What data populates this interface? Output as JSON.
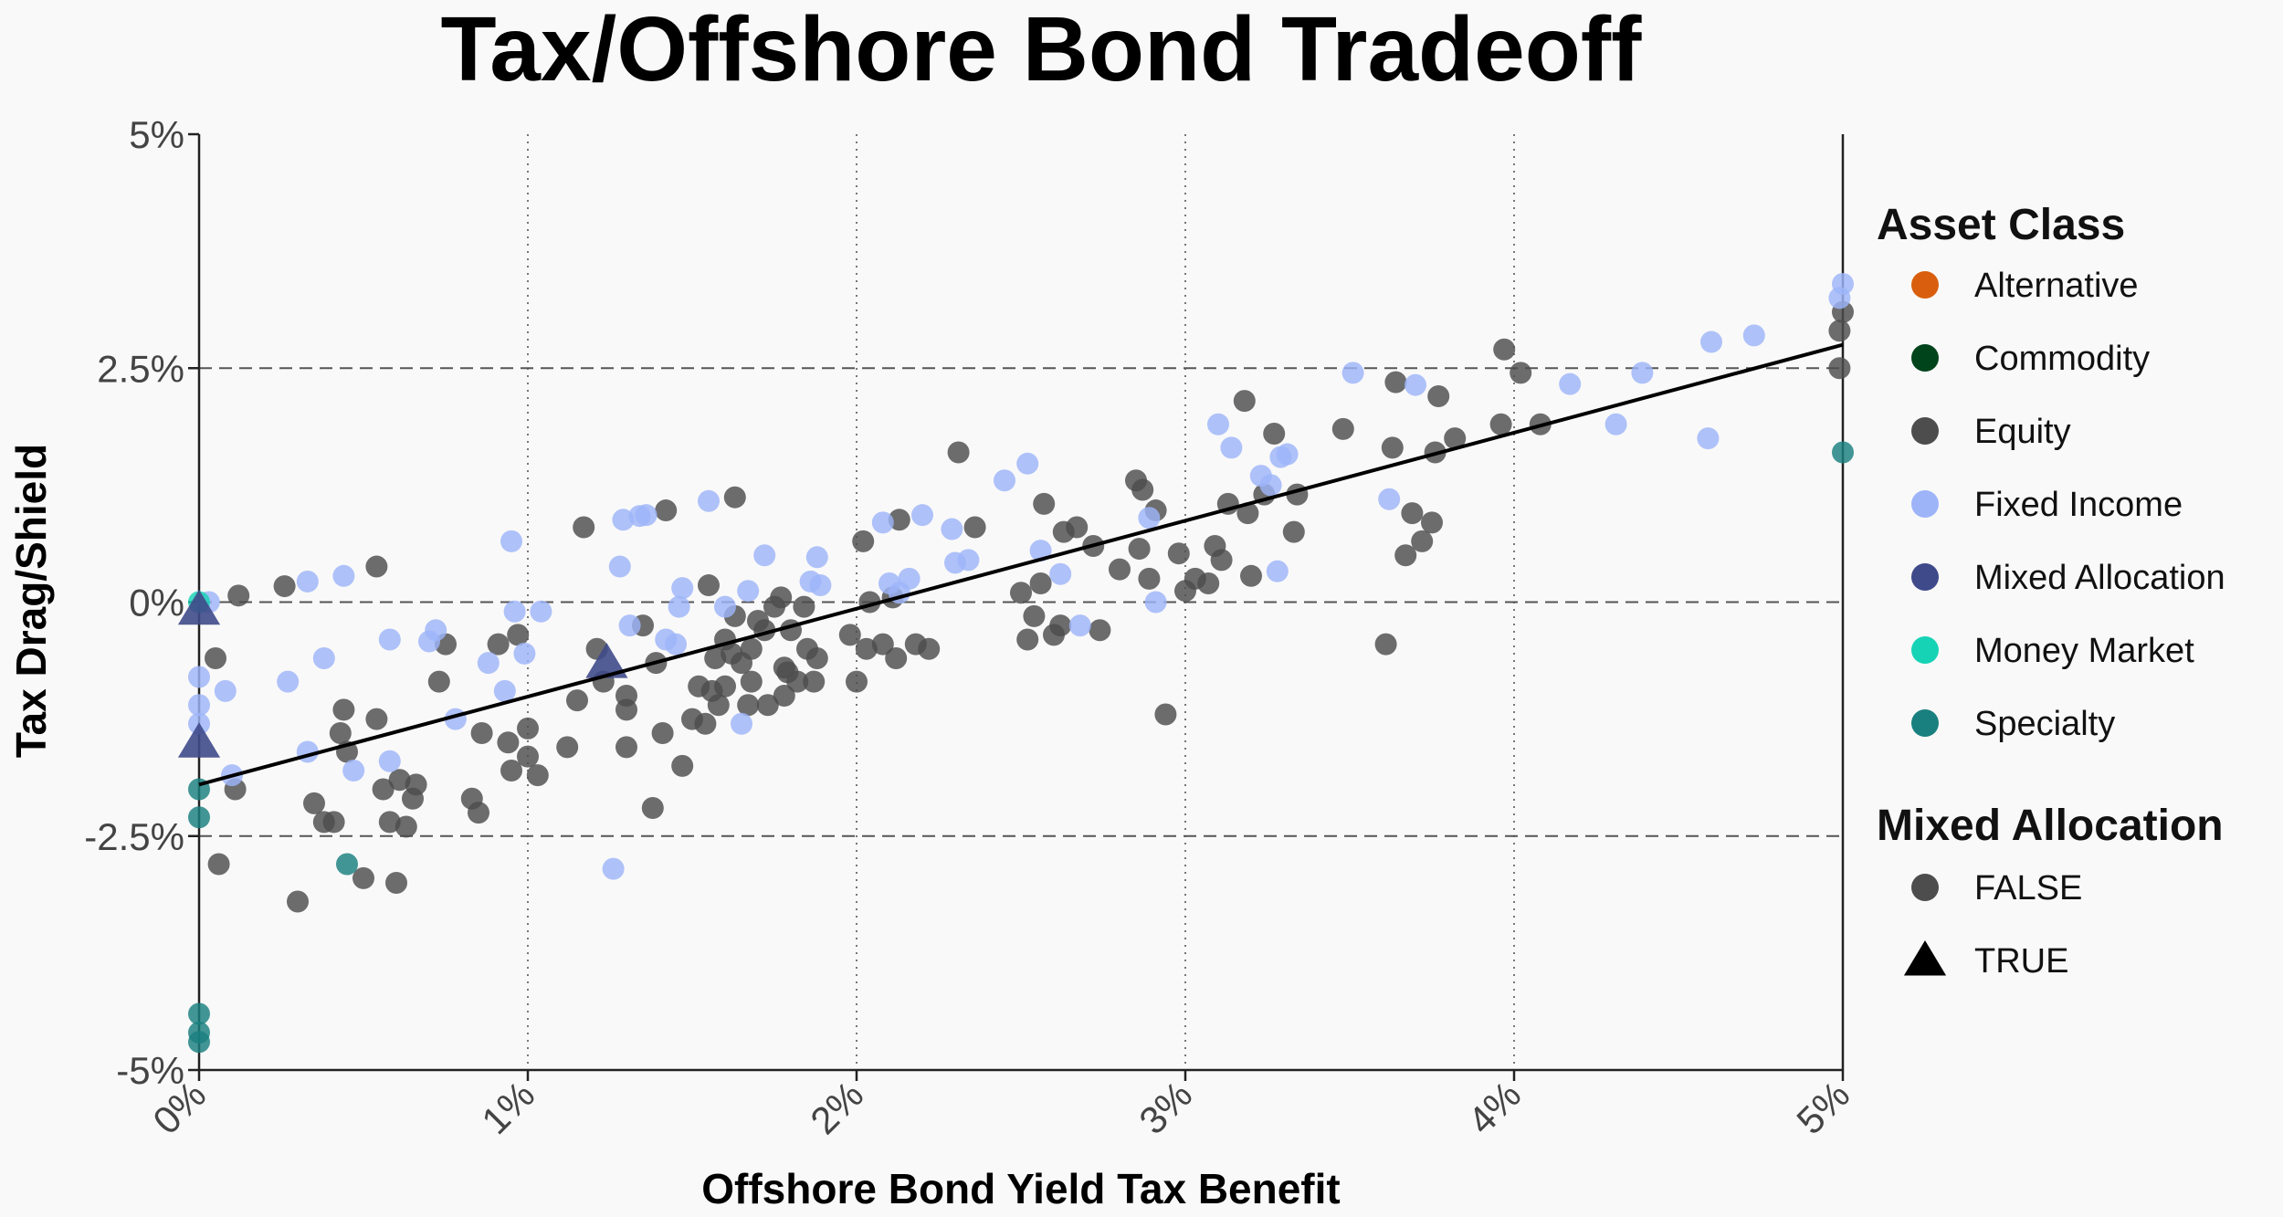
{
  "chart_data": {
    "type": "scatter",
    "title": "Tax/Offshore Bond Tradeoff",
    "xlabel": "Offshore Bond Yield Tax Benefit",
    "ylabel": "Tax Drag/Shield",
    "xlim": [
      0,
      5
    ],
    "ylim": [
      -5,
      5
    ],
    "x_ticks": [
      0,
      1,
      2,
      3,
      4,
      5
    ],
    "x_tick_labels": [
      "0%",
      "1%",
      "2%",
      "3%",
      "4%",
      "5%"
    ],
    "y_ticks": [
      -5,
      -2.5,
      0,
      2.5,
      5
    ],
    "y_tick_labels": [
      "-5%",
      "-2.5%",
      "0%",
      "2.5%",
      "5%"
    ],
    "grid": {
      "vertical": "dotted",
      "horizontal_dashed": [
        -2.5,
        0,
        2.5
      ]
    },
    "trend_line": {
      "x": [
        0,
        5
      ],
      "y": [
        -1.95,
        2.75
      ]
    },
    "legend": {
      "placement": "right",
      "color_title": "Asset Class",
      "shape_title": "Mixed Allocation",
      "classes": [
        {
          "name": "Alternative",
          "color": "#d95f0e"
        },
        {
          "name": "Commodity",
          "color": "#00441b"
        },
        {
          "name": "Equity",
          "color": "#4d4d4d"
        },
        {
          "name": "Fixed Income",
          "color": "#9db4f9"
        },
        {
          "name": "Mixed Allocation",
          "color": "#3f4a8a"
        },
        {
          "name": "Money Market",
          "color": "#17d3b6"
        },
        {
          "name": "Specialty",
          "color": "#1a7f7f"
        }
      ],
      "shapes": [
        {
          "name": "FALSE",
          "shape": "circle"
        },
        {
          "name": "TRUE",
          "shape": "triangle"
        }
      ]
    },
    "series": [
      {
        "class": "Equity",
        "mixed": false,
        "points": [
          [
            0.12,
            0.07
          ],
          [
            0.26,
            0.17
          ],
          [
            0.54,
            0.38
          ],
          [
            0.05,
            -0.6
          ],
          [
            0.06,
            -2.8
          ],
          [
            0.11,
            -2.0
          ],
          [
            0.3,
            -3.2
          ],
          [
            0.35,
            -2.15
          ],
          [
            0.38,
            -2.35
          ],
          [
            0.41,
            -2.35
          ],
          [
            0.43,
            -1.4
          ],
          [
            0.44,
            -1.15
          ],
          [
            0.45,
            -1.6
          ],
          [
            0.5,
            -2.95
          ],
          [
            0.54,
            -1.25
          ],
          [
            0.56,
            -2.0
          ],
          [
            0.58,
            -2.35
          ],
          [
            0.6,
            -3.0
          ],
          [
            0.61,
            -1.9
          ],
          [
            0.63,
            -2.4
          ],
          [
            0.65,
            -2.1
          ],
          [
            0.66,
            -1.95
          ],
          [
            0.73,
            -0.85
          ],
          [
            0.75,
            -0.45
          ],
          [
            0.83,
            -2.1
          ],
          [
            0.85,
            -2.25
          ],
          [
            0.86,
            -1.4
          ],
          [
            0.91,
            -0.45
          ],
          [
            0.94,
            -1.5
          ],
          [
            0.95,
            -1.8
          ],
          [
            0.97,
            -0.35
          ],
          [
            1.0,
            -1.35
          ],
          [
            1.0,
            -1.65
          ],
          [
            1.03,
            -1.85
          ],
          [
            1.12,
            -1.55
          ],
          [
            1.15,
            -1.05
          ],
          [
            1.17,
            0.8
          ],
          [
            1.21,
            -0.5
          ],
          [
            1.23,
            -0.85
          ],
          [
            1.3,
            -1.0
          ],
          [
            1.3,
            -1.15
          ],
          [
            1.3,
            -1.55
          ],
          [
            1.35,
            -0.25
          ],
          [
            1.38,
            -2.2
          ],
          [
            1.39,
            -0.65
          ],
          [
            1.41,
            -1.4
          ],
          [
            1.42,
            0.98
          ],
          [
            1.47,
            -1.75
          ],
          [
            1.5,
            -1.25
          ],
          [
            1.52,
            -0.9
          ],
          [
            1.54,
            -1.3
          ],
          [
            1.55,
            0.18
          ],
          [
            1.56,
            -0.95
          ],
          [
            1.57,
            -0.6
          ],
          [
            1.58,
            -1.1
          ],
          [
            1.6,
            -0.9
          ],
          [
            1.6,
            -0.4
          ],
          [
            1.62,
            -0.55
          ],
          [
            1.63,
            -0.15
          ],
          [
            1.63,
            1.12
          ],
          [
            1.65,
            -0.65
          ],
          [
            1.67,
            -1.1
          ],
          [
            1.68,
            -0.5
          ],
          [
            1.68,
            -0.85
          ],
          [
            1.7,
            -0.2
          ],
          [
            1.72,
            -0.3
          ],
          [
            1.73,
            -1.1
          ],
          [
            1.75,
            -0.05
          ],
          [
            1.77,
            0.05
          ],
          [
            1.78,
            -0.7
          ],
          [
            1.78,
            -1.0
          ],
          [
            1.79,
            -0.75
          ],
          [
            1.8,
            -0.3
          ],
          [
            1.82,
            -0.85
          ],
          [
            1.84,
            -0.05
          ],
          [
            1.85,
            -0.5
          ],
          [
            1.87,
            -0.85
          ],
          [
            1.88,
            -0.6
          ],
          [
            1.98,
            -0.35
          ],
          [
            2.0,
            -0.85
          ],
          [
            2.02,
            0.65
          ],
          [
            2.03,
            -0.5
          ],
          [
            2.04,
            0.0
          ],
          [
            2.08,
            -0.45
          ],
          [
            2.11,
            0.05
          ],
          [
            2.12,
            -0.6
          ],
          [
            2.13,
            0.88
          ],
          [
            2.18,
            -0.45
          ],
          [
            2.22,
            -0.5
          ],
          [
            2.31,
            1.6
          ],
          [
            2.36,
            0.8
          ],
          [
            2.5,
            0.1
          ],
          [
            2.52,
            -0.4
          ],
          [
            2.54,
            -0.15
          ],
          [
            2.56,
            0.2
          ],
          [
            2.57,
            1.05
          ],
          [
            2.6,
            -0.35
          ],
          [
            2.62,
            -0.25
          ],
          [
            2.63,
            0.75
          ],
          [
            2.67,
            0.8
          ],
          [
            2.72,
            0.6
          ],
          [
            2.74,
            -0.3
          ],
          [
            2.8,
            0.35
          ],
          [
            2.85,
            1.3
          ],
          [
            2.86,
            0.57
          ],
          [
            2.87,
            1.2
          ],
          [
            2.89,
            0.25
          ],
          [
            2.91,
            0.98
          ],
          [
            2.94,
            -1.2
          ],
          [
            2.98,
            0.52
          ],
          [
            3.0,
            0.12
          ],
          [
            3.03,
            0.25
          ],
          [
            3.07,
            0.2
          ],
          [
            3.09,
            0.6
          ],
          [
            3.11,
            0.45
          ],
          [
            3.13,
            1.05
          ],
          [
            3.18,
            2.15
          ],
          [
            3.19,
            0.95
          ],
          [
            3.2,
            0.28
          ],
          [
            3.24,
            1.15
          ],
          [
            3.27,
            1.8
          ],
          [
            3.33,
            0.75
          ],
          [
            3.34,
            1.15
          ],
          [
            3.48,
            1.85
          ],
          [
            3.61,
            -0.45
          ],
          [
            3.63,
            1.65
          ],
          [
            3.64,
            2.35
          ],
          [
            3.67,
            0.5
          ],
          [
            3.69,
            0.95
          ],
          [
            3.72,
            0.65
          ],
          [
            3.75,
            0.85
          ],
          [
            3.76,
            1.6
          ],
          [
            3.77,
            2.2
          ],
          [
            3.82,
            1.75
          ],
          [
            3.96,
            1.9
          ],
          [
            3.97,
            2.7
          ],
          [
            4.02,
            2.45
          ],
          [
            4.08,
            1.9
          ],
          [
            5.0,
            3.1
          ],
          [
            4.99,
            2.9
          ],
          [
            4.99,
            2.5
          ]
        ]
      },
      {
        "class": "Fixed Income",
        "mixed": false,
        "points": [
          [
            0.03,
            0.0
          ],
          [
            0.08,
            -0.95
          ],
          [
            0.1,
            -1.85
          ],
          [
            0.27,
            -0.85
          ],
          [
            0.33,
            -1.6
          ],
          [
            0.33,
            0.22
          ],
          [
            0.38,
            -0.6
          ],
          [
            0.44,
            0.28
          ],
          [
            0.47,
            -1.8
          ],
          [
            0.58,
            -0.4
          ],
          [
            0.58,
            -1.7
          ],
          [
            0.7,
            -0.42
          ],
          [
            0.72,
            -0.3
          ],
          [
            0.78,
            -1.25
          ],
          [
            0.88,
            -0.65
          ],
          [
            0.93,
            -0.95
          ],
          [
            0.95,
            0.65
          ],
          [
            0.96,
            -0.1
          ],
          [
            0.99,
            -0.55
          ],
          [
            1.04,
            -0.1
          ],
          [
            1.26,
            -2.85
          ],
          [
            1.28,
            0.38
          ],
          [
            1.29,
            0.88
          ],
          [
            1.31,
            -0.25
          ],
          [
            1.34,
            0.92
          ],
          [
            1.36,
            0.93
          ],
          [
            1.42,
            -0.4
          ],
          [
            1.45,
            -0.45
          ],
          [
            1.46,
            -0.05
          ],
          [
            1.47,
            0.15
          ],
          [
            1.55,
            1.08
          ],
          [
            1.6,
            -0.05
          ],
          [
            1.65,
            -1.3
          ],
          [
            1.67,
            0.12
          ],
          [
            1.72,
            0.5
          ],
          [
            1.86,
            0.22
          ],
          [
            1.88,
            0.48
          ],
          [
            1.89,
            0.18
          ],
          [
            2.08,
            0.85
          ],
          [
            2.1,
            0.2
          ],
          [
            2.13,
            0.1
          ],
          [
            2.16,
            0.25
          ],
          [
            2.2,
            0.93
          ],
          [
            2.29,
            0.78
          ],
          [
            2.3,
            0.42
          ],
          [
            2.34,
            0.45
          ],
          [
            2.45,
            1.3
          ],
          [
            2.52,
            1.48
          ],
          [
            2.56,
            0.55
          ],
          [
            2.62,
            0.3
          ],
          [
            2.68,
            -0.25
          ],
          [
            2.89,
            0.9
          ],
          [
            2.91,
            0.0
          ],
          [
            3.1,
            1.9
          ],
          [
            3.14,
            1.65
          ],
          [
            3.23,
            1.35
          ],
          [
            3.26,
            1.25
          ],
          [
            3.28,
            0.33
          ],
          [
            3.29,
            1.55
          ],
          [
            3.31,
            1.58
          ],
          [
            3.51,
            2.45
          ],
          [
            3.62,
            1.1
          ],
          [
            3.7,
            2.32
          ],
          [
            4.17,
            2.33
          ],
          [
            4.31,
            1.9
          ],
          [
            4.39,
            2.45
          ],
          [
            4.59,
            1.75
          ],
          [
            4.6,
            2.78
          ],
          [
            4.73,
            2.85
          ],
          [
            5.0,
            3.4
          ],
          [
            4.99,
            3.25
          ],
          [
            0.0,
            -0.8
          ],
          [
            0.0,
            -1.1
          ],
          [
            0.0,
            -1.3
          ]
        ]
      },
      {
        "class": "Specialty",
        "mixed": false,
        "points": [
          [
            0.45,
            -2.8
          ],
          [
            5.0,
            1.6
          ],
          [
            0.0,
            -4.4
          ],
          [
            0.0,
            -4.6
          ],
          [
            0.0,
            -4.7
          ],
          [
            0.0,
            -2.0
          ],
          [
            0.0,
            -2.3
          ]
        ]
      },
      {
        "class": "Money Market",
        "mixed": false,
        "points": [
          [
            0.0,
            0.0
          ]
        ]
      },
      {
        "class": "Mixed Allocation",
        "mixed": true,
        "points": [
          [
            1.24,
            -0.65
          ],
          [
            0.0,
            -0.08
          ],
          [
            0.0,
            -1.5
          ]
        ]
      }
    ]
  }
}
